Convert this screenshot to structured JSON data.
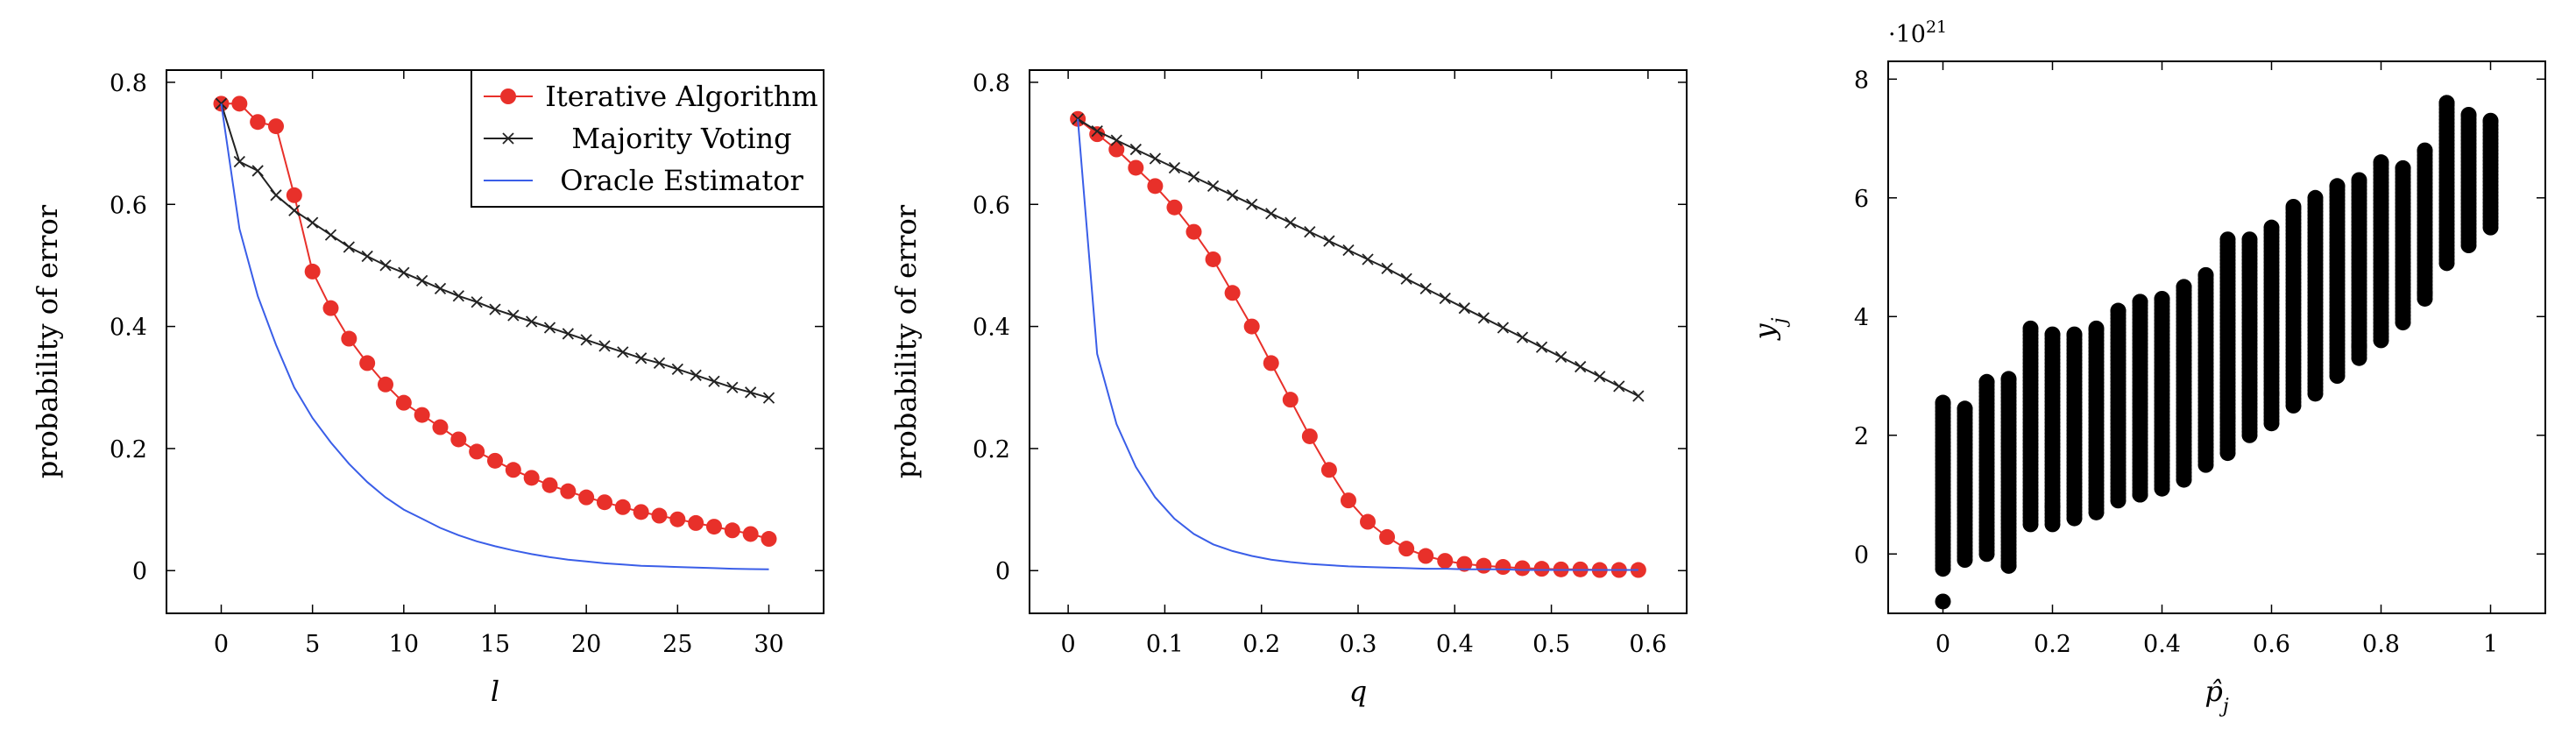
{
  "chart_data": [
    {
      "type": "line",
      "xlabel": "l",
      "ylabel": "probability of error",
      "xlim": [
        -3,
        33
      ],
      "ylim": [
        -0.07,
        0.82
      ],
      "xticks": [
        0,
        5,
        10,
        15,
        20,
        25,
        30
      ],
      "yticks": [
        0,
        0.2,
        0.4,
        0.6,
        0.8
      ],
      "xtick_labels": [
        "0",
        "5",
        "10",
        "15",
        "20",
        "25",
        "30"
      ],
      "ytick_labels": [
        "0",
        "0.2",
        "0.4",
        "0.6",
        "0.8"
      ],
      "legend_position": "top-right",
      "legend": [
        "Iterative Algorithm",
        "Majority Voting",
        "Oracle Estimator"
      ],
      "series": [
        {
          "name": "Iterative Algorithm",
          "color": "#e8302a",
          "marker": "circle",
          "x": [
            0,
            1,
            2,
            3,
            4,
            5,
            6,
            7,
            8,
            9,
            10,
            11,
            12,
            13,
            14,
            15,
            16,
            17,
            18,
            19,
            20,
            21,
            22,
            23,
            24,
            25,
            26,
            27,
            28,
            29,
            30
          ],
          "y": [
            0.765,
            0.765,
            0.735,
            0.728,
            0.615,
            0.49,
            0.43,
            0.38,
            0.34,
            0.305,
            0.275,
            0.255,
            0.235,
            0.215,
            0.195,
            0.18,
            0.165,
            0.152,
            0.14,
            0.13,
            0.12,
            0.112,
            0.104,
            0.096,
            0.09,
            0.084,
            0.078,
            0.072,
            0.066,
            0.06,
            0.052
          ]
        },
        {
          "name": "Majority Voting",
          "color": "#222222",
          "marker": "cross",
          "x": [
            0,
            1,
            2,
            3,
            4,
            5,
            6,
            7,
            8,
            9,
            10,
            11,
            12,
            13,
            14,
            15,
            16,
            17,
            18,
            19,
            20,
            21,
            22,
            23,
            24,
            25,
            26,
            27,
            28,
            29,
            30
          ],
          "y": [
            0.765,
            0.67,
            0.655,
            0.615,
            0.59,
            0.57,
            0.55,
            0.53,
            0.515,
            0.5,
            0.488,
            0.475,
            0.462,
            0.45,
            0.44,
            0.428,
            0.418,
            0.408,
            0.398,
            0.388,
            0.378,
            0.368,
            0.358,
            0.348,
            0.34,
            0.33,
            0.32,
            0.31,
            0.3,
            0.292,
            0.283
          ]
        },
        {
          "name": "Oracle Estimator",
          "color": "#3a5ee8",
          "marker": "none",
          "x": [
            0,
            1,
            2,
            3,
            4,
            5,
            6,
            7,
            8,
            9,
            10,
            11,
            12,
            13,
            14,
            15,
            16,
            17,
            18,
            19,
            20,
            21,
            22,
            23,
            24,
            25,
            26,
            27,
            28,
            29,
            30
          ],
          "y": [
            0.765,
            0.56,
            0.45,
            0.37,
            0.3,
            0.25,
            0.21,
            0.175,
            0.145,
            0.12,
            0.1,
            0.085,
            0.07,
            0.058,
            0.048,
            0.04,
            0.033,
            0.027,
            0.022,
            0.018,
            0.015,
            0.012,
            0.01,
            0.008,
            0.007,
            0.006,
            0.005,
            0.004,
            0.003,
            0.0025,
            0.002
          ]
        }
      ]
    },
    {
      "type": "line",
      "xlabel": "q",
      "ylabel": "probability of error",
      "xlim": [
        -0.04,
        0.64
      ],
      "ylim": [
        -0.07,
        0.82
      ],
      "xticks": [
        0,
        0.1,
        0.2,
        0.3,
        0.4,
        0.5,
        0.6
      ],
      "yticks": [
        0,
        0.2,
        0.4,
        0.6,
        0.8
      ],
      "xtick_labels": [
        "0",
        "0.1",
        "0.2",
        "0.3",
        "0.4",
        "0.5",
        "0.6"
      ],
      "ytick_labels": [
        "0",
        "0.2",
        "0.4",
        "0.6",
        "0.8"
      ],
      "series": [
        {
          "name": "Iterative Algorithm",
          "color": "#e8302a",
          "marker": "circle",
          "x": [
            0.01,
            0.03,
            0.05,
            0.07,
            0.09,
            0.11,
            0.13,
            0.15,
            0.17,
            0.19,
            0.21,
            0.23,
            0.25,
            0.27,
            0.29,
            0.31,
            0.33,
            0.35,
            0.37,
            0.39,
            0.41,
            0.43,
            0.45,
            0.47,
            0.49,
            0.51,
            0.53,
            0.55,
            0.57,
            0.59
          ],
          "y": [
            0.74,
            0.715,
            0.69,
            0.66,
            0.63,
            0.595,
            0.555,
            0.51,
            0.455,
            0.4,
            0.34,
            0.28,
            0.22,
            0.165,
            0.115,
            0.08,
            0.055,
            0.036,
            0.024,
            0.016,
            0.011,
            0.008,
            0.006,
            0.004,
            0.003,
            0.002,
            0.002,
            0.001,
            0.001,
            0.001
          ]
        },
        {
          "name": "Majority Voting",
          "color": "#222222",
          "marker": "cross",
          "x": [
            0.01,
            0.03,
            0.05,
            0.07,
            0.09,
            0.11,
            0.13,
            0.15,
            0.17,
            0.19,
            0.21,
            0.23,
            0.25,
            0.27,
            0.29,
            0.31,
            0.33,
            0.35,
            0.37,
            0.39,
            0.41,
            0.43,
            0.45,
            0.47,
            0.49,
            0.51,
            0.53,
            0.55,
            0.57,
            0.59
          ],
          "y": [
            0.74,
            0.72,
            0.705,
            0.69,
            0.675,
            0.66,
            0.645,
            0.63,
            0.615,
            0.6,
            0.585,
            0.57,
            0.555,
            0.54,
            0.525,
            0.51,
            0.495,
            0.478,
            0.462,
            0.446,
            0.43,
            0.414,
            0.398,
            0.382,
            0.366,
            0.35,
            0.334,
            0.318,
            0.302,
            0.286
          ]
        },
        {
          "name": "Oracle Estimator",
          "color": "#3a5ee8",
          "marker": "none",
          "x": [
            0.01,
            0.03,
            0.05,
            0.07,
            0.09,
            0.11,
            0.13,
            0.15,
            0.17,
            0.19,
            0.21,
            0.23,
            0.25,
            0.27,
            0.29,
            0.31,
            0.33,
            0.35,
            0.37,
            0.39,
            0.41,
            0.43,
            0.45,
            0.47,
            0.49,
            0.51,
            0.53,
            0.55,
            0.57,
            0.59
          ],
          "y": [
            0.74,
            0.355,
            0.24,
            0.17,
            0.12,
            0.085,
            0.06,
            0.043,
            0.032,
            0.024,
            0.018,
            0.014,
            0.011,
            0.009,
            0.007,
            0.006,
            0.005,
            0.004,
            0.003,
            0.003,
            0.002,
            0.002,
            0.002,
            0.001,
            0.001,
            0.001,
            0.001,
            0.001,
            0.001,
            0.001
          ]
        }
      ]
    },
    {
      "type": "scatter",
      "xlabel": "p̂_j",
      "ylabel": "y_j",
      "y_multiplier": "·10",
      "y_multiplier_exp": "21",
      "xlim": [
        -0.1,
        1.1
      ],
      "ylim": [
        -1.0,
        8.3
      ],
      "xticks": [
        0,
        0.2,
        0.4,
        0.6,
        0.8,
        1
      ],
      "yticks": [
        0,
        2,
        4,
        6,
        8
      ],
      "xtick_labels": [
        "0",
        "0.2",
        "0.4",
        "0.6",
        "0.8",
        "1"
      ],
      "ytick_labels": [
        "0",
        "2",
        "4",
        "6",
        "8"
      ],
      "color": "#000000",
      "columns": [
        {
          "x": 0.0,
          "ymin": -0.25,
          "ymax": 2.55
        },
        {
          "x": 0.04,
          "ymin": -0.1,
          "ymax": 2.45
        },
        {
          "x": 0.08,
          "ymin": 0.0,
          "ymax": 2.9
        },
        {
          "x": 0.12,
          "ymin": -0.2,
          "ymax": 2.95
        },
        {
          "x": 0.16,
          "ymin": 0.5,
          "ymax": 3.8
        },
        {
          "x": 0.2,
          "ymin": 0.5,
          "ymax": 3.7
        },
        {
          "x": 0.24,
          "ymin": 0.6,
          "ymax": 3.7
        },
        {
          "x": 0.28,
          "ymin": 0.7,
          "ymax": 3.8
        },
        {
          "x": 0.32,
          "ymin": 0.9,
          "ymax": 4.1
        },
        {
          "x": 0.36,
          "ymin": 1.0,
          "ymax": 4.25
        },
        {
          "x": 0.4,
          "ymin": 1.1,
          "ymax": 4.3
        },
        {
          "x": 0.44,
          "ymin": 1.25,
          "ymax": 4.5
        },
        {
          "x": 0.48,
          "ymin": 1.5,
          "ymax": 4.7
        },
        {
          "x": 0.52,
          "ymin": 1.7,
          "ymax": 5.3
        },
        {
          "x": 0.56,
          "ymin": 2.0,
          "ymax": 5.3
        },
        {
          "x": 0.6,
          "ymin": 2.2,
          "ymax": 5.5
        },
        {
          "x": 0.64,
          "ymin": 2.5,
          "ymax": 5.85
        },
        {
          "x": 0.68,
          "ymin": 2.7,
          "ymax": 6.0
        },
        {
          "x": 0.72,
          "ymin": 3.0,
          "ymax": 6.2
        },
        {
          "x": 0.76,
          "ymin": 3.3,
          "ymax": 6.3
        },
        {
          "x": 0.8,
          "ymin": 3.6,
          "ymax": 6.6
        },
        {
          "x": 0.84,
          "ymin": 3.9,
          "ymax": 6.5
        },
        {
          "x": 0.88,
          "ymin": 4.3,
          "ymax": 6.8
        },
        {
          "x": 0.92,
          "ymin": 4.9,
          "ymax": 7.6
        },
        {
          "x": 0.96,
          "ymin": 5.2,
          "ymax": 7.4
        },
        {
          "x": 1.0,
          "ymin": 5.5,
          "ymax": 7.3
        }
      ],
      "outliers": [
        {
          "x": 0.0,
          "y": -0.8
        },
        {
          "x": 0.12,
          "y": -0.2
        },
        {
          "x": 0.2,
          "y": 0.8
        },
        {
          "x": 0.36,
          "y": 1.0
        },
        {
          "x": 0.52,
          "y": 2.3
        },
        {
          "x": 0.6,
          "y": 2.7
        },
        {
          "x": 0.76,
          "y": 3.5
        },
        {
          "x": 0.88,
          "y": 4.4
        },
        {
          "x": 0.92,
          "y": 7.6
        }
      ]
    }
  ]
}
